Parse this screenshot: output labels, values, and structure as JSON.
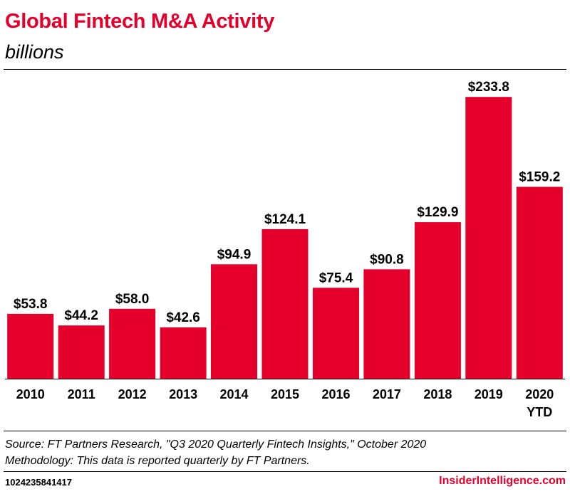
{
  "header": {
    "title": "Global Fintech M&A Activity",
    "subtitle": "billions"
  },
  "chart_data": {
    "type": "bar",
    "categories": [
      "2010",
      "2011",
      "2012",
      "2013",
      "2014",
      "2015",
      "2016",
      "2017",
      "2018",
      "2019",
      "2020 YTD"
    ],
    "values": [
      53.8,
      44.2,
      58.0,
      42.6,
      94.9,
      124.1,
      75.4,
      90.8,
      129.9,
      233.8,
      159.2
    ],
    "data_labels": [
      "$53.8",
      "$44.2",
      "$58.0",
      "$42.6",
      "$94.9",
      "$124.1",
      "$75.4",
      "$90.8",
      "$129.9",
      "$233.8",
      "$159.2"
    ],
    "title": "Global Fintech M&A Activity",
    "subtitle": "billions",
    "xlabel": "",
    "ylabel": "",
    "ylim": [
      0,
      240
    ],
    "grid": false,
    "bar_color": "#e4002b"
  },
  "footer": {
    "source_line": "Source: FT Partners Research, \"Q3 2020 Quarterly Fintech Insights,\" October 2020",
    "methodology_line": "Methodology: This data is reported quarterly by FT Partners.",
    "chart_id": "1024235841417",
    "brand": "InsiderIntelligence.com"
  }
}
